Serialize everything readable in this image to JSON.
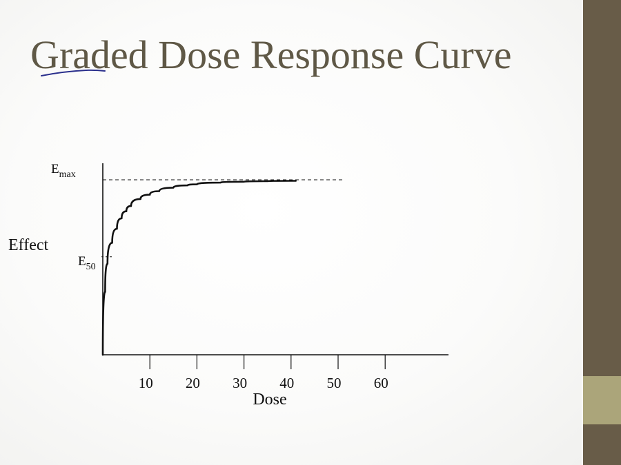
{
  "slide": {
    "title": "Graded Dose Response Curve",
    "colors": {
      "title": "#5f5846",
      "sidebar": "#685c48",
      "sidebar_accent": "#aba57a",
      "ink": "#111111",
      "annotation_ink": "#2a2f8c"
    },
    "annotation": {
      "kind": "handwritten-underline",
      "under_text": "Grad"
    }
  },
  "chart_data": {
    "type": "line",
    "title": "",
    "xlabel": "Dose",
    "ylabel": "Effect",
    "x_ticks": [
      10,
      20,
      30,
      40,
      50,
      60
    ],
    "xlim": [
      0,
      73
    ],
    "ylim": [
      0,
      100
    ],
    "y_marks": [
      {
        "label_main": "E",
        "label_sub": "max",
        "value": 100
      },
      {
        "label_main": "E",
        "label_sub": "50",
        "value": 56
      }
    ],
    "series": [
      {
        "curve": "hyperbolic",
        "x": [
          0,
          0.5,
          1,
          2,
          3,
          4,
          5,
          6,
          8,
          10,
          12,
          15,
          18,
          20,
          25,
          30,
          35,
          40,
          41
        ],
        "y": [
          0,
          36,
          52,
          64,
          72,
          78,
          82,
          85,
          89,
          91.5,
          93.5,
          95.5,
          96.8,
          97.4,
          98.4,
          98.9,
          99.2,
          99.4,
          99.4
        ]
      }
    ],
    "reference_lines": [
      {
        "type": "dashed",
        "y": 100,
        "x_to": 51
      },
      {
        "type": "dashed-tick",
        "y": 56
      }
    ]
  }
}
